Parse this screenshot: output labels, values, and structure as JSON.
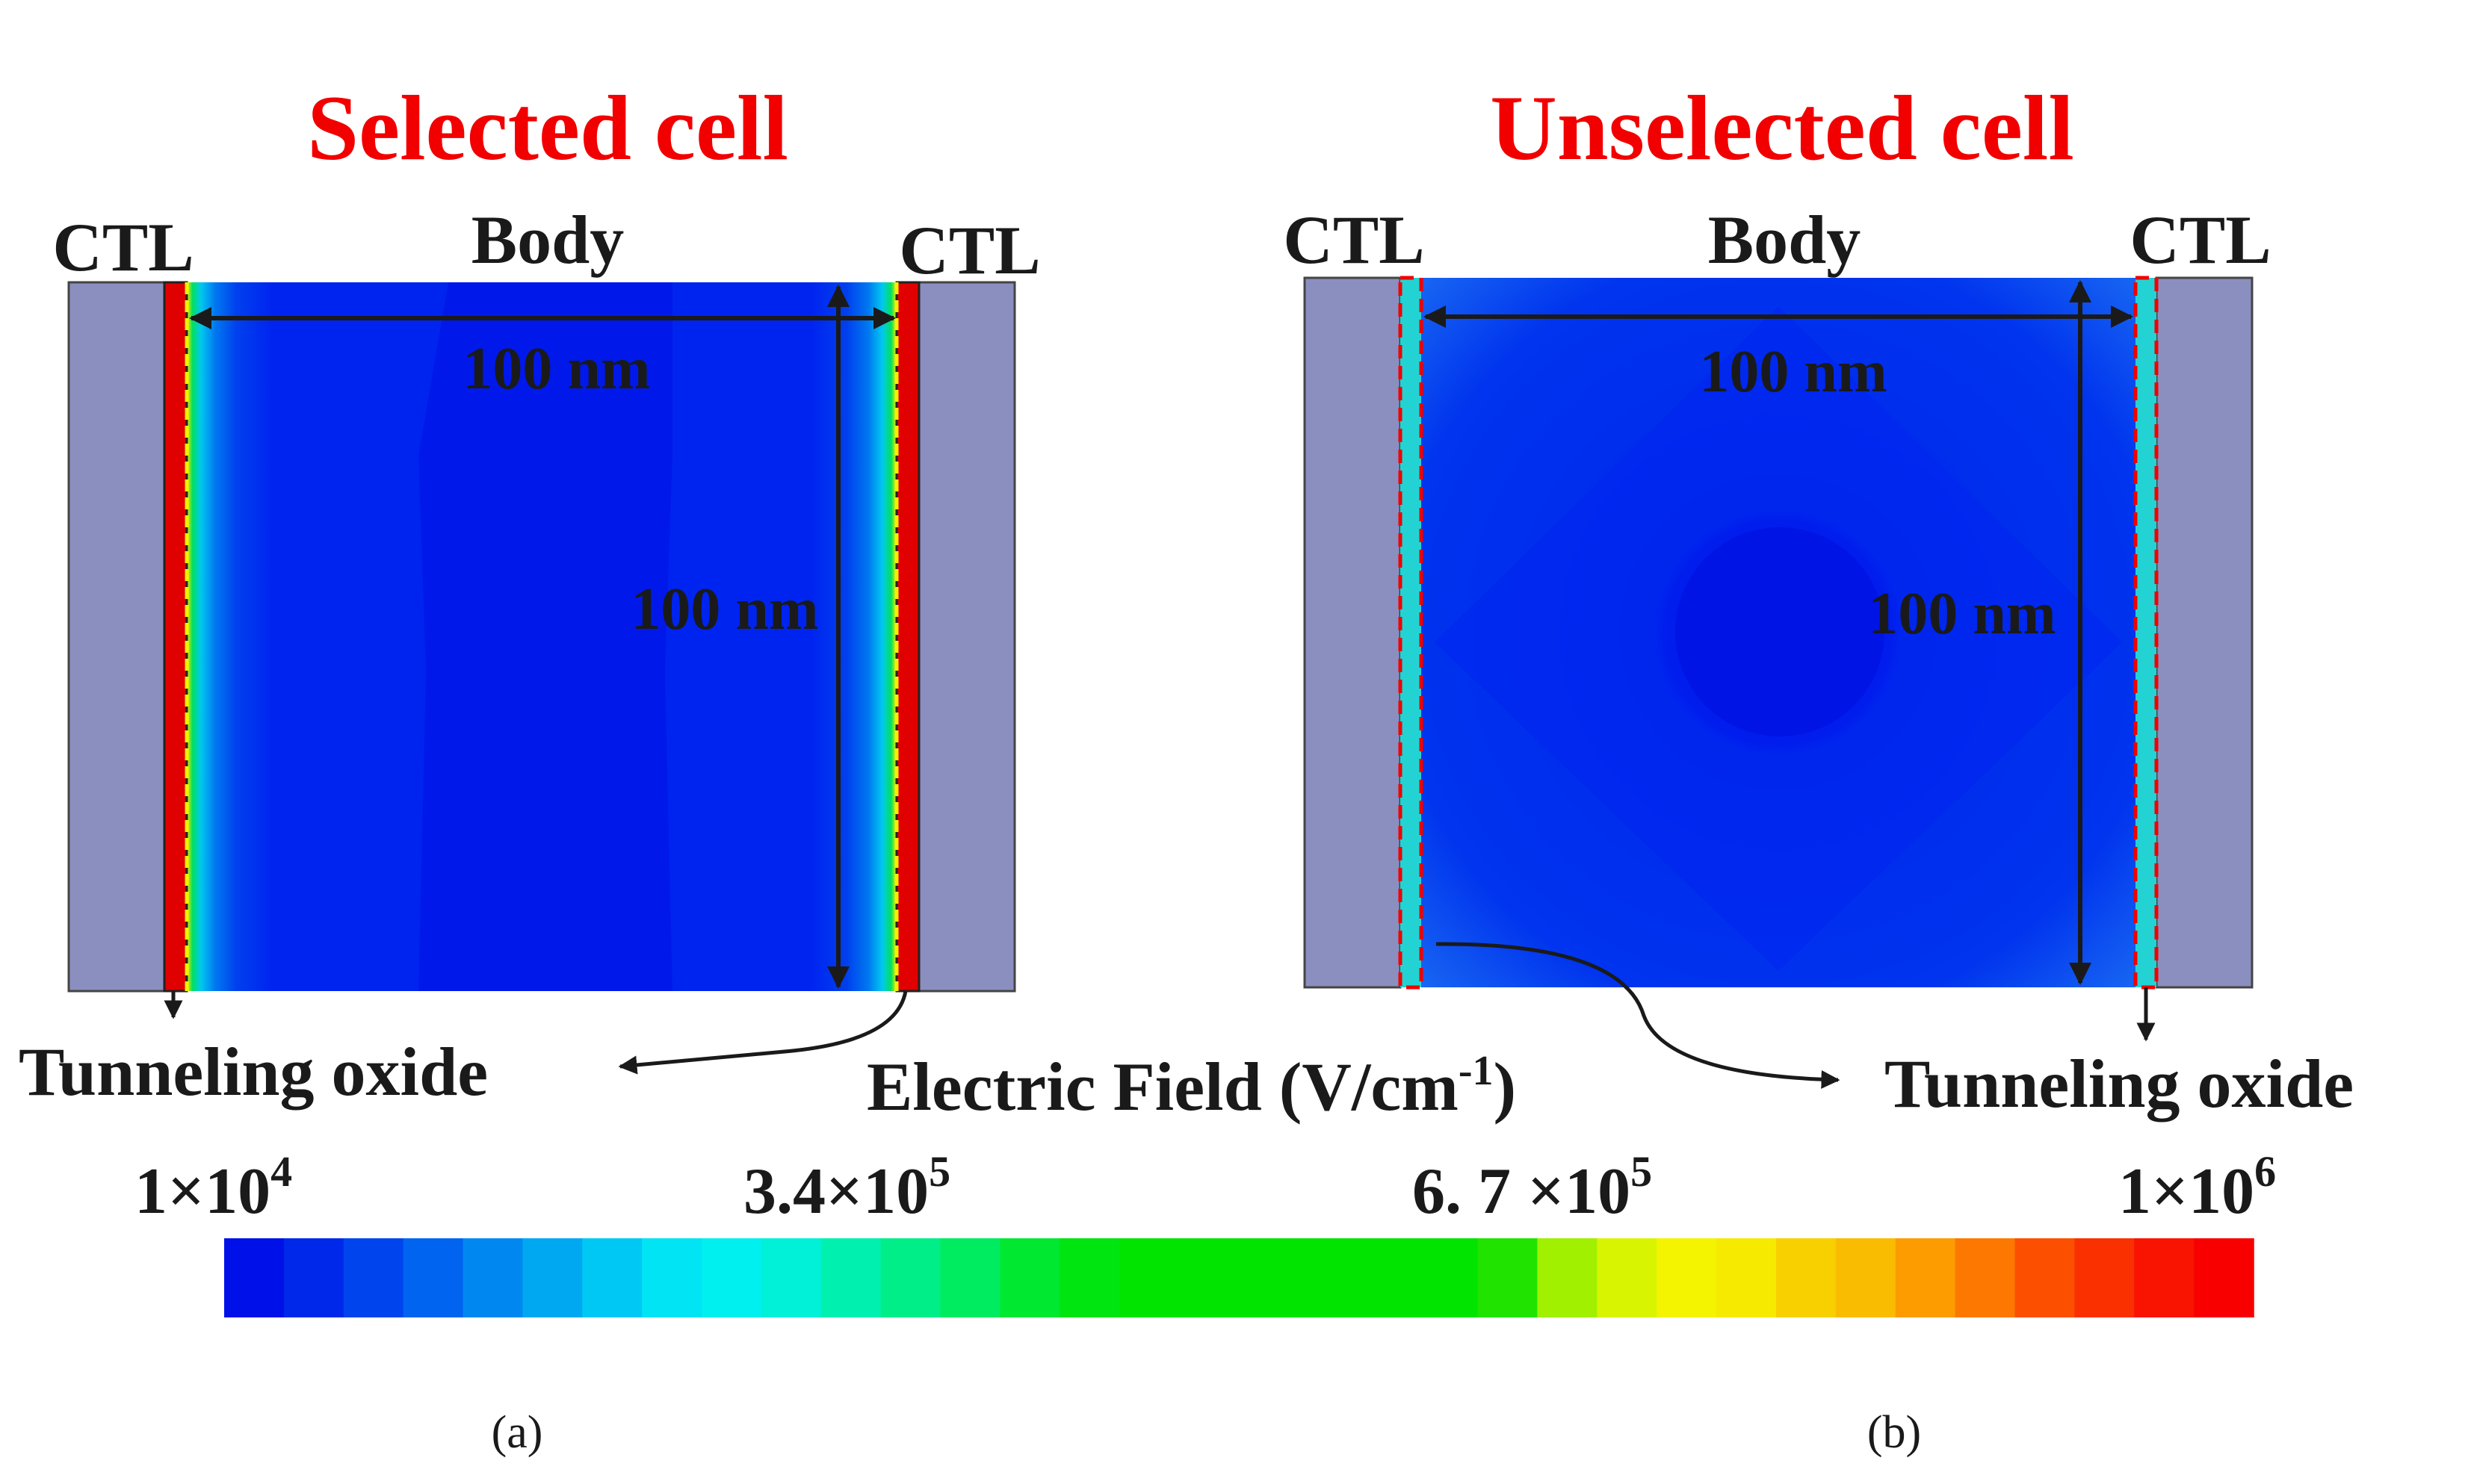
{
  "colors": {
    "title": "#f20000",
    "ctl_block": "#8b8fbf",
    "body_field": "#0024f0",
    "body_field_dark": "#0016e8",
    "oxide_selected": "#e00000",
    "oxide_unselected": "#23d3d3",
    "arrow": "#1a1a1a"
  },
  "panels": {
    "a": {
      "title": "Selected cell",
      "ctl_left": "CTL",
      "ctl_right": "CTL",
      "body": "Body",
      "width_dim": "100 nm",
      "height_dim": "100 nm",
      "callout": "Tunneling oxide",
      "caption": "(a)"
    },
    "b": {
      "title": "Unselected cell",
      "ctl_left": "CTL",
      "ctl_right": "CTL",
      "body": "Body",
      "width_dim": "100 nm",
      "height_dim": "100 nm",
      "callout": "Tunneling oxide",
      "caption": "(b)"
    }
  },
  "colorbar": {
    "title_main": "Electric Field (V/cm",
    "title_sup": "-1",
    "title_close": ")",
    "ticks": [
      {
        "mantissa": "1×10",
        "exp": "4"
      },
      {
        "mantissa": "3.4×10",
        "exp": "5"
      },
      {
        "mantissa": "6. 7 ×10",
        "exp": "5"
      },
      {
        "mantissa": "1×10",
        "exp": "6"
      }
    ],
    "min": 10000,
    "max": 1000000,
    "steps": [
      "#0010e8",
      "#0028ea",
      "#0044ee",
      "#0064f0",
      "#0088f0",
      "#00a8f2",
      "#00c8f4",
      "#00e4f4",
      "#00f0f0",
      "#00f0d8",
      "#00f0b0",
      "#00ee88",
      "#00ec60",
      "#00e830",
      "#00e410",
      "#00e400",
      "#00e400",
      "#00e400",
      "#00e400",
      "#00e400",
      "#00e400",
      "#20e400",
      "#a0f000",
      "#d8f400",
      "#f4f400",
      "#f6ea00",
      "#f8d000",
      "#fabc00",
      "#fc9c00",
      "#fc7800",
      "#fc5000",
      "#fa3000",
      "#f81400",
      "#f80000"
    ]
  }
}
